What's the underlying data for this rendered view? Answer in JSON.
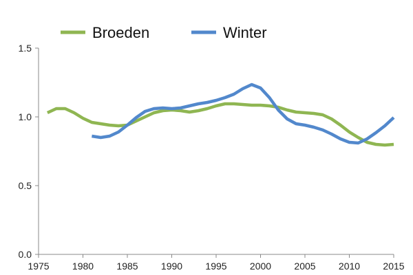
{
  "chart_data": {
    "type": "line",
    "x_ticks": [
      "1975",
      "1980",
      "1985",
      "1990",
      "1995",
      "2000",
      "2005",
      "2010",
      "2015"
    ],
    "y_ticks": [
      "0.0",
      "0.5",
      "1.0",
      "1.5"
    ],
    "xlim": [
      1975,
      2015
    ],
    "ylim": [
      0.0,
      1.5
    ],
    "grid": false,
    "legend_position": "top",
    "series": [
      {
        "name": "Broeden",
        "color": "#8fb652",
        "x": [
          1976,
          1977,
          1978,
          1979,
          1980,
          1981,
          1982,
          1983,
          1984,
          1985,
          1986,
          1987,
          1988,
          1989,
          1990,
          1991,
          1992,
          1993,
          1994,
          1995,
          1996,
          1997,
          1998,
          1999,
          2000,
          2001,
          2002,
          2003,
          2004,
          2005,
          2006,
          2007,
          2008,
          2009,
          2010,
          2011,
          2012,
          2013,
          2014,
          2015
        ],
        "y": [
          1.03,
          1.06,
          1.06,
          1.03,
          0.99,
          0.96,
          0.95,
          0.94,
          0.935,
          0.94,
          0.97,
          1.0,
          1.03,
          1.045,
          1.05,
          1.045,
          1.035,
          1.045,
          1.06,
          1.08,
          1.095,
          1.095,
          1.09,
          1.085,
          1.085,
          1.08,
          1.07,
          1.05,
          1.035,
          1.03,
          1.025,
          1.015,
          0.985,
          0.94,
          0.89,
          0.85,
          0.815,
          0.8,
          0.795,
          0.8
        ]
      },
      {
        "name": "Winter",
        "color": "#5288cc",
        "x": [
          1981,
          1982,
          1983,
          1984,
          1985,
          1986,
          1987,
          1988,
          1989,
          1990,
          1991,
          1992,
          1993,
          1994,
          1995,
          1996,
          1997,
          1998,
          1999,
          2000,
          2001,
          2002,
          2003,
          2004,
          2005,
          2006,
          2007,
          2008,
          2009,
          2010,
          2011,
          2012,
          2013,
          2014,
          2015
        ],
        "y": [
          0.86,
          0.85,
          0.86,
          0.89,
          0.94,
          0.995,
          1.04,
          1.06,
          1.065,
          1.06,
          1.065,
          1.08,
          1.095,
          1.105,
          1.12,
          1.14,
          1.165,
          1.205,
          1.235,
          1.21,
          1.14,
          1.05,
          0.985,
          0.95,
          0.94,
          0.925,
          0.905,
          0.875,
          0.84,
          0.815,
          0.81,
          0.84,
          0.885,
          0.935,
          0.995
        ]
      }
    ]
  }
}
